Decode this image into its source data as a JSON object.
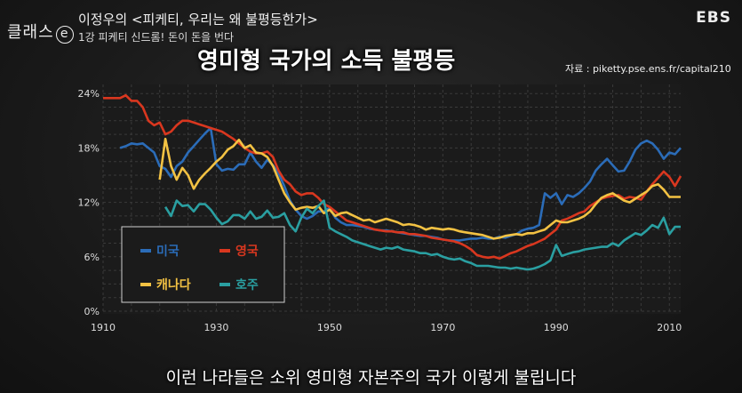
{
  "header": {
    "brand": "클래스",
    "brand_e": "e",
    "episode_title": "이정우의 <피케티, 우리는 왜 불평등한가>",
    "episode_sub": "1강 피케티 신드롬! 돈이 돈을 번다",
    "logo": "EBS"
  },
  "main": {
    "title": "영미형 국가의 소득 불평등",
    "source": "자료 : piketty.pse.ens.fr/capital210"
  },
  "caption": "이런 나라들은 소위 영미형 자본주의 국가 이렇게 불립니다",
  "chart_data": {
    "type": "line",
    "title": "영미형 국가의 소득 불평등",
    "x_ticks": [
      "1910",
      "1930",
      "1950",
      "1970",
      "1990",
      "2010"
    ],
    "y_ticks": [
      "0%",
      "6%",
      "12%",
      "18%",
      "24%"
    ],
    "xlim": [
      1910,
      2012
    ],
    "ylim": [
      0,
      25
    ],
    "grid": true,
    "legend_position": "bottom-left",
    "series": [
      {
        "name": "미국",
        "color": "#2b6cb8",
        "x": [
          1913,
          1914,
          1915,
          1916,
          1917,
          1918,
          1919,
          1920,
          1921,
          1922,
          1923,
          1924,
          1925,
          1926,
          1927,
          1928,
          1929,
          1930,
          1931,
          1932,
          1933,
          1934,
          1935,
          1936,
          1937,
          1938,
          1939,
          1940,
          1941,
          1942,
          1943,
          1944,
          1945,
          1946,
          1947,
          1948,
          1949,
          1950,
          1951,
          1952,
          1953,
          1954,
          1955,
          1956,
          1957,
          1958,
          1959,
          1960,
          1961,
          1962,
          1963,
          1964,
          1965,
          1966,
          1967,
          1968,
          1969,
          1970,
          1971,
          1972,
          1973,
          1974,
          1975,
          1976,
          1977,
          1978,
          1979,
          1980,
          1981,
          1982,
          1983,
          1984,
          1985,
          1986,
          1987,
          1988,
          1989,
          1990,
          1991,
          1992,
          1993,
          1994,
          1995,
          1996,
          1997,
          1998,
          1999,
          2000,
          2001,
          2002,
          2003,
          2004,
          2005,
          2006,
          2007,
          2008,
          2009,
          2010,
          2011,
          2012
        ],
        "values": [
          18,
          18.2,
          18.5,
          18.4,
          18.5,
          18,
          17.5,
          16,
          15.7,
          14.8,
          16,
          16.5,
          17.5,
          18.2,
          18.9,
          19.6,
          20.2,
          16.2,
          15.5,
          15.7,
          15.6,
          16.2,
          16.2,
          17.5,
          16.5,
          15.8,
          16.7,
          16.1,
          15.2,
          13.8,
          12.2,
          11.2,
          10.5,
          10.2,
          10.5,
          11,
          11,
          11.4,
          10.3,
          9.8,
          9.5,
          9.5,
          9.4,
          9.3,
          9.1,
          9.0,
          8.9,
          8.9,
          8.8,
          8.7,
          8.6,
          8.5,
          8.4,
          8.3,
          8.3,
          8.2,
          8.1,
          7.9,
          7.8,
          7.8,
          7.8,
          7.9,
          8.0,
          8.0,
          8.1,
          8.0,
          8.0,
          8.2,
          8.1,
          8.3,
          8.5,
          8.9,
          9.1,
          9.2,
          9.5,
          13.0,
          12.5,
          13.0,
          11.8,
          12.8,
          12.6,
          13.0,
          13.6,
          14.3,
          15.5,
          16.2,
          16.8,
          16.1,
          15.4,
          15.5,
          16.5,
          17.8,
          18.5,
          18.8,
          18.5,
          17.8,
          16.8,
          17.5,
          17.3,
          18
        ]
      },
      {
        "name": "영국",
        "color": "#d9371f",
        "x": [
          1910,
          1911,
          1912,
          1913,
          1914,
          1915,
          1916,
          1917,
          1918,
          1919,
          1920,
          1921,
          1922,
          1923,
          1924,
          1925,
          1926,
          1927,
          1928,
          1929,
          1930,
          1931,
          1932,
          1933,
          1934,
          1935,
          1936,
          1937,
          1938,
          1939,
          1940,
          1941,
          1942,
          1943,
          1944,
          1945,
          1946,
          1947,
          1948,
          1949,
          1950,
          1951,
          1952,
          1953,
          1954,
          1955,
          1956,
          1957,
          1958,
          1959,
          1960,
          1961,
          1962,
          1963,
          1964,
          1965,
          1966,
          1967,
          1968,
          1969,
          1970,
          1971,
          1972,
          1973,
          1974,
          1975,
          1976,
          1977,
          1978,
          1979,
          1980,
          1981,
          1982,
          1983,
          1984,
          1985,
          1986,
          1987,
          1988,
          1989,
          1990,
          1991,
          1992,
          1993,
          1994,
          1995,
          1996,
          1997,
          1998,
          1999,
          2000,
          2001,
          2002,
          2003,
          2004,
          2005,
          2006,
          2007,
          2008,
          2009,
          2010,
          2011,
          2012
        ],
        "values": [
          23.5,
          23.5,
          23.5,
          23.5,
          23.8,
          23.2,
          23.2,
          22.5,
          21,
          20.5,
          20.8,
          19.5,
          19.8,
          20.5,
          21,
          21,
          20.8,
          20.6,
          20.4,
          20.2,
          20,
          19.8,
          19.4,
          19.0,
          18.5,
          18.0,
          17.6,
          17.4,
          17.4,
          17.6,
          17.0,
          15.5,
          14.5,
          14.0,
          13.2,
          12.8,
          13.0,
          13.0,
          12.5,
          11.8,
          11.5,
          11.0,
          10.5,
          10.0,
          9.8,
          9.6,
          9.4,
          9.2,
          9.0,
          8.9,
          8.8,
          8.8,
          8.7,
          8.7,
          8.5,
          8.5,
          8.4,
          8.3,
          8.1,
          8.0,
          7.9,
          7.8,
          7.7,
          7.5,
          7.2,
          6.8,
          6.2,
          6.0,
          5.9,
          6.0,
          5.8,
          6.1,
          6.4,
          6.6,
          6.9,
          7.2,
          7.4,
          7.7,
          8.0,
          8.5,
          9.0,
          10.0,
          10.2,
          10.5,
          10.8,
          11.0,
          11.6,
          12.0,
          12.4,
          12.6,
          12.7,
          12.8,
          12.4,
          12.6,
          12.5,
          12.3,
          13.2,
          14.0,
          14.7,
          15.4,
          14.8,
          13.8,
          14.9
        ]
      },
      {
        "name": "캐나다",
        "color": "#f3c243",
        "x": [
          1920,
          1921,
          1922,
          1923,
          1924,
          1925,
          1926,
          1927,
          1928,
          1929,
          1930,
          1931,
          1932,
          1933,
          1934,
          1935,
          1936,
          1937,
          1938,
          1939,
          1940,
          1941,
          1942,
          1943,
          1944,
          1945,
          1946,
          1947,
          1948,
          1949,
          1950,
          1951,
          1952,
          1953,
          1954,
          1955,
          1956,
          1957,
          1958,
          1959,
          1960,
          1961,
          1962,
          1963,
          1964,
          1965,
          1966,
          1967,
          1968,
          1969,
          1970,
          1971,
          1972,
          1973,
          1974,
          1975,
          1976,
          1977,
          1978,
          1979,
          1980,
          1981,
          1982,
          1983,
          1984,
          1985,
          1986,
          1987,
          1988,
          1989,
          1990,
          1991,
          1992,
          1993,
          1994,
          1995,
          1996,
          1997,
          1998,
          1999,
          2000,
          2001,
          2002,
          2003,
          2004,
          2005,
          2006,
          2007,
          2008,
          2009,
          2010,
          2011,
          2012
        ],
        "values": [
          14.5,
          19,
          16,
          14.5,
          15.8,
          15,
          13.5,
          14.5,
          15.2,
          15.8,
          16.5,
          17,
          17.8,
          18.2,
          18.9,
          18.0,
          18.3,
          17.5,
          17.4,
          17.0,
          16.0,
          14.5,
          13.0,
          12.0,
          11.2,
          11.4,
          11.5,
          11.4,
          11.6,
          10.8,
          11.2,
          10.5,
          10.8,
          10.9,
          10.6,
          10.3,
          10.0,
          10.1,
          9.8,
          10.0,
          10.2,
          10.0,
          9.8,
          9.5,
          9.6,
          9.5,
          9.3,
          9.0,
          9.2,
          9.1,
          9.0,
          9.1,
          9.0,
          8.8,
          8.7,
          8.6,
          8.5,
          8.4,
          8.2,
          8.0,
          8.1,
          8.3,
          8.4,
          8.5,
          8.4,
          8.6,
          8.6,
          8.8,
          9.0,
          9.5,
          10.0,
          9.8,
          9.8,
          10.0,
          10.2,
          10.5,
          11.0,
          11.8,
          12.5,
          12.8,
          13.0,
          12.6,
          12.2,
          12.0,
          12.4,
          12.8,
          13.2,
          13.8,
          14.0,
          13.4,
          12.6,
          12.6,
          12.6
        ]
      },
      {
        "name": "호주",
        "color": "#2a9fa1",
        "x": [
          1921,
          1922,
          1923,
          1924,
          1925,
          1926,
          1927,
          1928,
          1929,
          1930,
          1931,
          1932,
          1933,
          1934,
          1935,
          1936,
          1937,
          1938,
          1939,
          1940,
          1941,
          1942,
          1943,
          1944,
          1945,
          1946,
          1947,
          1948,
          1949,
          1950,
          1951,
          1952,
          1953,
          1954,
          1955,
          1956,
          1957,
          1958,
          1959,
          1960,
          1961,
          1962,
          1963,
          1964,
          1965,
          1966,
          1967,
          1968,
          1969,
          1970,
          1971,
          1972,
          1973,
          1974,
          1975,
          1976,
          1977,
          1978,
          1979,
          1980,
          1981,
          1982,
          1983,
          1984,
          1985,
          1986,
          1987,
          1988,
          1989,
          1990,
          1991,
          1992,
          1993,
          1994,
          1995,
          1996,
          1997,
          1998,
          1999,
          2000,
          2001,
          2002,
          2003,
          2004,
          2005,
          2006,
          2007,
          2008,
          2009,
          2010,
          2011,
          2012
        ],
        "values": [
          11.5,
          10.5,
          12.2,
          11.6,
          11.7,
          11.0,
          11.8,
          11.8,
          11.2,
          10.3,
          9.6,
          9.9,
          10.6,
          10.6,
          10.2,
          11.0,
          10.2,
          10.4,
          11.1,
          10.3,
          10.4,
          10.8,
          9.5,
          8.8,
          10.3,
          11.3,
          10.8,
          11.6,
          12.2,
          9.2,
          8.8,
          8.5,
          8.2,
          7.8,
          7.6,
          7.4,
          7.2,
          7.0,
          6.8,
          7.0,
          6.9,
          7.1,
          6.8,
          6.7,
          6.6,
          6.4,
          6.4,
          6.2,
          6.3,
          6.0,
          5.8,
          5.7,
          5.8,
          5.5,
          5.3,
          5.0,
          5.0,
          5.0,
          4.9,
          4.8,
          4.8,
          4.7,
          4.8,
          4.7,
          4.6,
          4.7,
          4.9,
          5.2,
          5.6,
          7.3,
          6.1,
          6.3,
          6.5,
          6.6,
          6.8,
          6.9,
          7.0,
          7.1,
          7.1,
          7.5,
          7.2,
          7.8,
          8.2,
          8.6,
          8.4,
          8.9,
          9.5,
          9.2,
          10.3,
          8.5,
          9.3,
          9.3
        ]
      }
    ]
  }
}
